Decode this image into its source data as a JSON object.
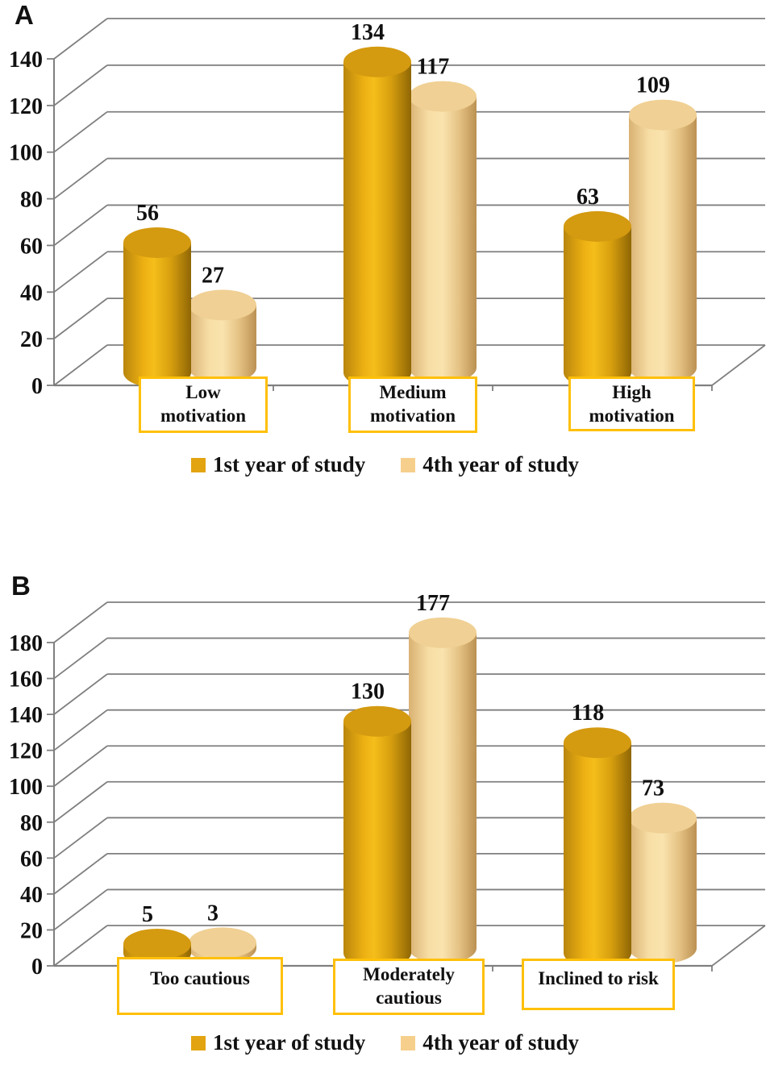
{
  "figure": {
    "description": "Two 3D cylinder bar charts comparing 1st vs 4th year students",
    "background": "#ffffff"
  },
  "colors": {
    "series1_fill": "#E2A411",
    "series1_top": "#D49A10",
    "series2_fill": "#F6CF8C",
    "series2_top": "#F0D094",
    "gridline": "#7f7f7f",
    "category_box_border": "#FFC008",
    "text": "#111111"
  },
  "chart_data": [
    {
      "panel_label": "A",
      "type": "bar",
      "subtype": "3d-cylinder",
      "title": "",
      "xlabel": "",
      "ylabel": "",
      "categories": [
        "Low motivation",
        "Medium motivation",
        "High motivation"
      ],
      "series": [
        {
          "name": "1st year of study",
          "values": [
            56,
            134,
            63
          ]
        },
        {
          "name": "4th year of study",
          "values": [
            27,
            117,
            109
          ]
        }
      ],
      "data_labels": [
        [
          "56",
          "134",
          "63"
        ],
        [
          "27",
          "117",
          "109"
        ]
      ],
      "ylim": [
        0,
        140
      ],
      "ytick_step": 20,
      "yticks": [
        0,
        20,
        40,
        60,
        80,
        100,
        120,
        140
      ],
      "grid": true,
      "legend_position": "bottom"
    },
    {
      "panel_label": "B",
      "type": "bar",
      "subtype": "3d-cylinder",
      "title": "",
      "xlabel": "",
      "ylabel": "",
      "categories": [
        "Too cautious",
        "Moderately cautious",
        "Inclined to risk"
      ],
      "series": [
        {
          "name": "1st year of study",
          "values": [
            5,
            130,
            118
          ]
        },
        {
          "name": "4th year of study",
          "values": [
            3,
            177,
            73
          ]
        }
      ],
      "data_labels": [
        [
          "5",
          "130",
          "118"
        ],
        [
          "3",
          "177",
          "73"
        ]
      ],
      "ylim": [
        0,
        180
      ],
      "ytick_step": 20,
      "yticks": [
        0,
        20,
        40,
        60,
        80,
        100,
        120,
        140,
        160,
        180
      ],
      "grid": true,
      "legend_position": "bottom"
    }
  ]
}
